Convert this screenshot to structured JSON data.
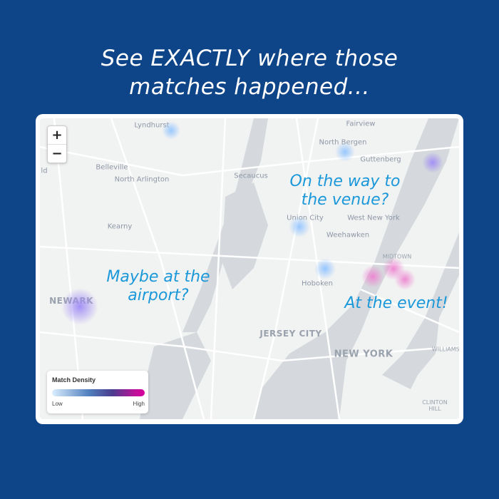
{
  "headline": {
    "line1": "See EXACTLY where those",
    "line2": "matches happened..."
  },
  "map": {
    "zoom_in_label": "+",
    "zoom_out_label": "−",
    "places": {
      "lyndhurst": "Lyndhurst",
      "fairview": "Fairview",
      "north_bergen": "North Bergen",
      "ld": "ld",
      "belleville": "Belleville",
      "north_arlington": "North Arlington",
      "secaucus": "Secaucus",
      "guttenberg": "Guttenberg",
      "west_new_york": "West New York",
      "union_city": "Union City",
      "weehawken": "Weehawken",
      "kearny": "Kearny",
      "hoboken": "Hoboken",
      "midtown": "MIDTOWN",
      "newark": "NEWARK",
      "jersey_city": "JERSEY CITY",
      "new_york": "NEW YORK",
      "williamsburg": "WILLIAMSB",
      "clinton": "CLINTON",
      "hill": "HILL"
    },
    "annotations": {
      "venue_1": "On the way to",
      "venue_2": "the venue?",
      "airport_1": "Maybe at the",
      "airport_2": "airport?",
      "event": "At the event!"
    },
    "heat_levels": {
      "low": "#8fc3ff",
      "mid": "#a08cf5",
      "high": "#ee7fd0"
    }
  },
  "legend": {
    "title": "Match Density",
    "low_label": "Low",
    "high_label": "High"
  },
  "colors": {
    "background": "#0e4488",
    "annotation": "#1b98d9",
    "water": "#d5d9dd",
    "land": "#f1f2f2"
  }
}
